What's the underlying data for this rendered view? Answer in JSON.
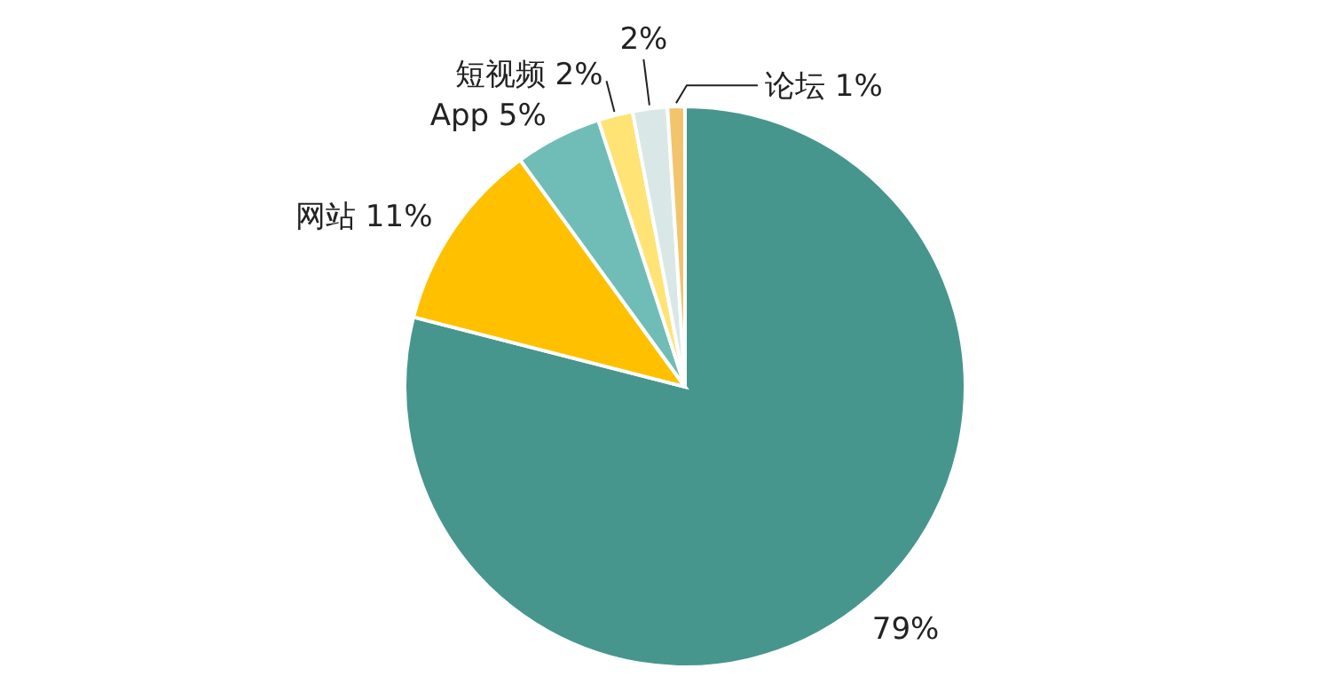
{
  "chart_data": {
    "type": "pie",
    "categories": [
      null,
      "网站",
      "App",
      "短视频",
      null,
      "论坛"
    ],
    "values": [
      79,
      11,
      5,
      2,
      2,
      1
    ],
    "value_labels": [
      "79%",
      "11%",
      "5%",
      "2%",
      "2%",
      "1%"
    ],
    "colors": [
      "#46968e",
      "#ffc000",
      "#70bdb8",
      "#ffe375",
      "#d9e8e6",
      "#f2c46e"
    ]
  }
}
